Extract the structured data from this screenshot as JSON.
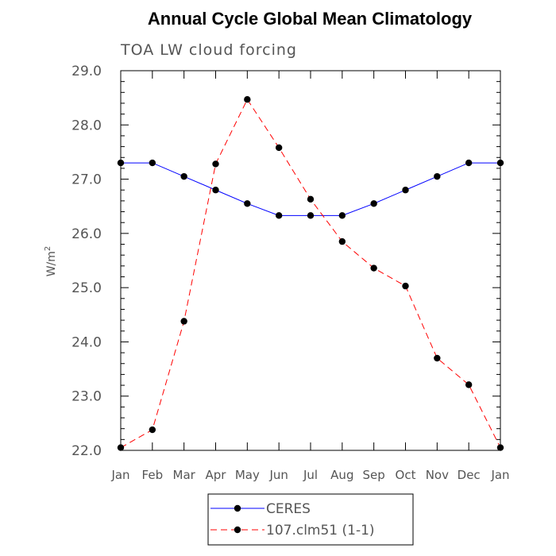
{
  "chart_data": {
    "type": "line",
    "title": "Annual Cycle Global Mean Climatology",
    "subtitle": "TOA LW cloud forcing",
    "ylabel": "W/m",
    "ylabel_superscript": "2",
    "xlabel": "",
    "categories": [
      "Jan",
      "Feb",
      "Mar",
      "Apr",
      "May",
      "Jun",
      "Jul",
      "Aug",
      "Sep",
      "Oct",
      "Nov",
      "Dec",
      "Jan"
    ],
    "ylim": [
      22.0,
      29.0
    ],
    "yticks": [
      "22.0",
      "23.0",
      "24.0",
      "25.0",
      "26.0",
      "27.0",
      "28.0",
      "29.0"
    ],
    "grid": false,
    "legend_position": "bottom",
    "series": [
      {
        "name": "CERES",
        "color": "#0000ff",
        "dash": "solid",
        "values": [
          27.3,
          27.3,
          27.05,
          26.8,
          26.55,
          26.33,
          26.33,
          26.33,
          26.55,
          26.8,
          27.05,
          27.3,
          27.3
        ]
      },
      {
        "name": "107.clm51 (1-1)",
        "color": "#ff0000",
        "dash": "dashed",
        "values": [
          22.05,
          22.38,
          24.38,
          27.28,
          28.47,
          27.58,
          26.63,
          25.85,
          25.36,
          25.03,
          23.7,
          23.21,
          22.05
        ]
      }
    ]
  }
}
